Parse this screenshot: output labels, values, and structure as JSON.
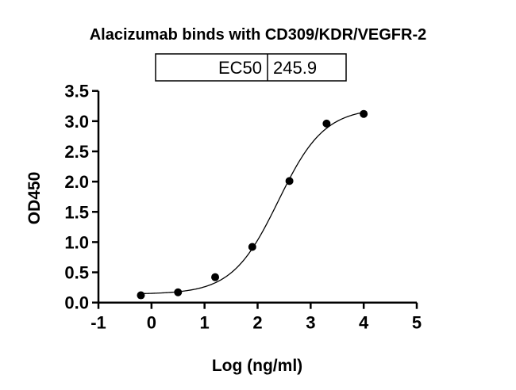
{
  "chart_data": {
    "type": "scatter",
    "title": "Alacizumab binds with CD309/KDR/VEGFR-2",
    "xlabel": "Log (ng/ml)",
    "ylabel": "OD450",
    "xlim": [
      -1,
      5
    ],
    "ylim": [
      0,
      3.5
    ],
    "x_ticks": [
      -1,
      0,
      1,
      2,
      3,
      4,
      5
    ],
    "x_tick_labels": [
      "-1",
      "0",
      "1",
      "2",
      "3",
      "4",
      "5"
    ],
    "y_ticks": [
      0,
      0.5,
      1,
      1.5,
      2,
      2.5,
      3,
      3.5
    ],
    "y_tick_labels": [
      "0.0",
      "0.5",
      "1.0",
      "1.5",
      "2.0",
      "2.5",
      "3.0",
      "3.5"
    ],
    "grid": false,
    "points": {
      "x": [
        -0.2,
        0.5,
        1.2,
        1.9,
        2.6,
        3.3,
        4.0
      ],
      "y": [
        0.12,
        0.17,
        0.42,
        0.92,
        2.01,
        2.96,
        3.12
      ]
    },
    "fit": {
      "model": "4PL sigmoid",
      "bottom": 0.14,
      "top": 3.22,
      "log_ec50": 2.39,
      "hill": 1.0
    },
    "legend_table": {
      "label": "EC50",
      "value": "245.9"
    },
    "colors": {
      "points": "#000000",
      "curve": "#000000"
    }
  }
}
